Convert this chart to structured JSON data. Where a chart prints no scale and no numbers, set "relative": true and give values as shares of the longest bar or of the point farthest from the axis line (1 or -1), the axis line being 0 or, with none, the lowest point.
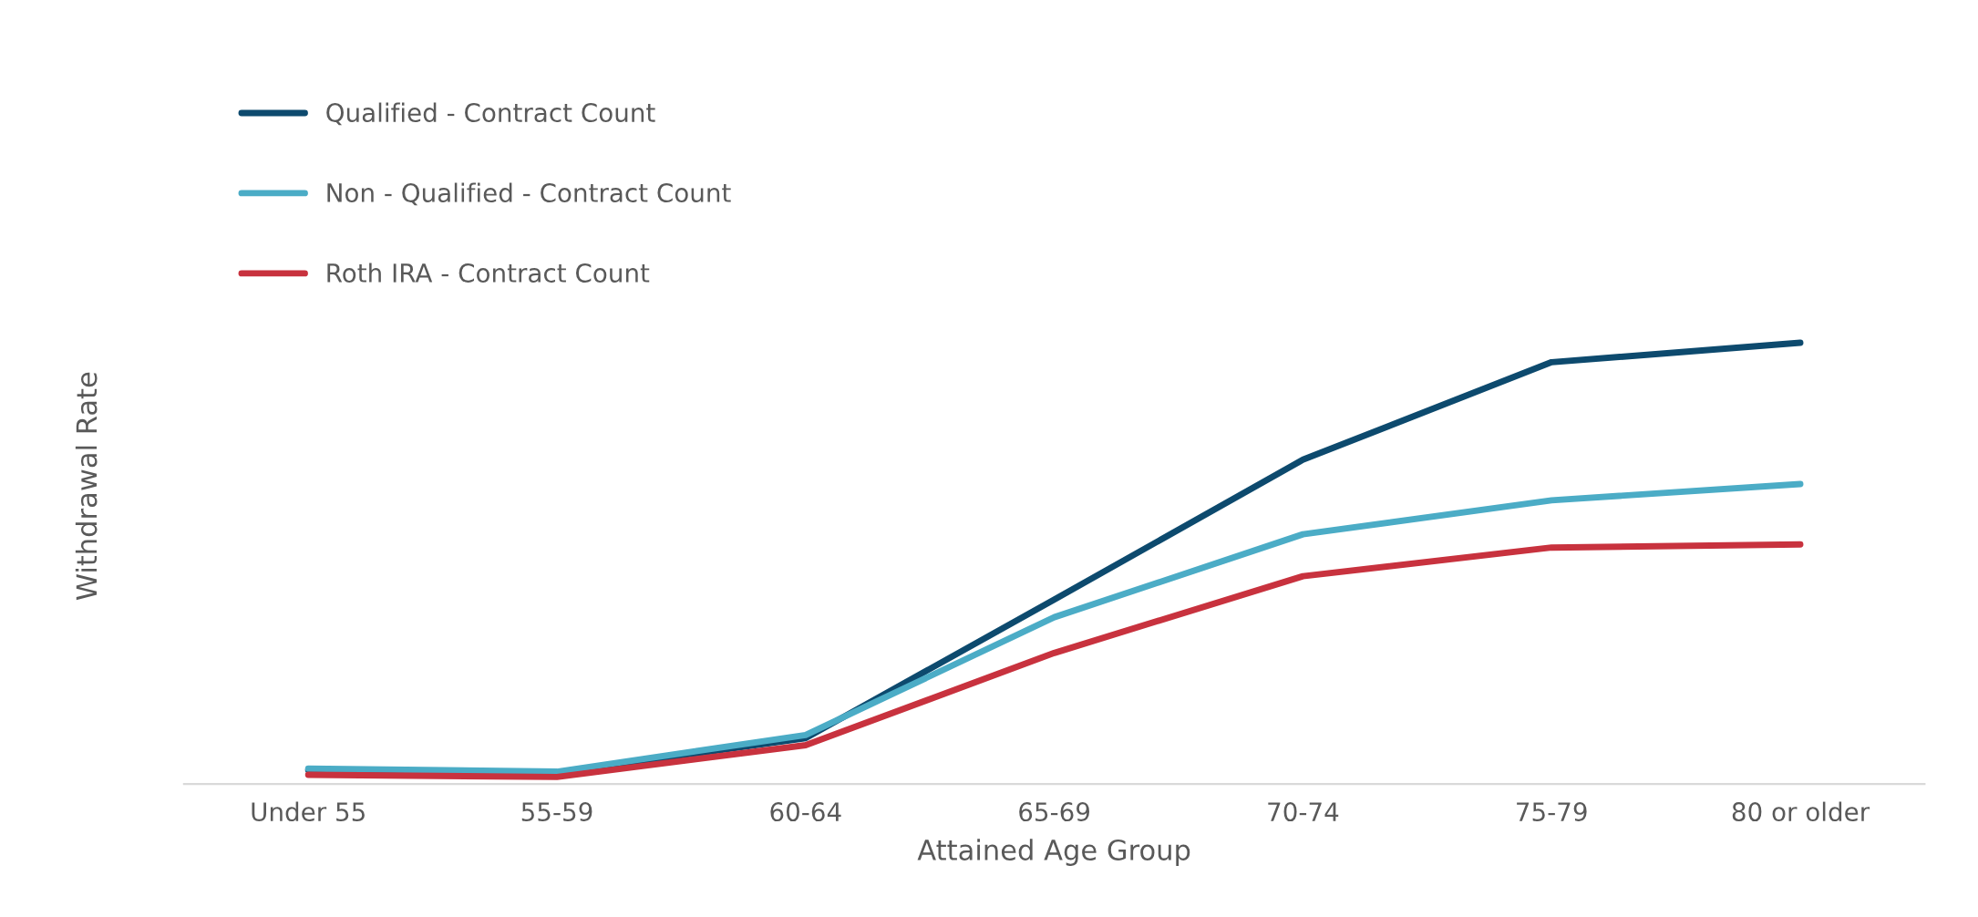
{
  "chart_data": {
    "type": "line",
    "relative": true,
    "xlabel": "Attained Age Group",
    "ylabel": "Withdrawal Rate",
    "categories": [
      "Under 55",
      "55-59",
      "60-64",
      "65-69",
      "70-74",
      "75-79",
      "80 or older"
    ],
    "series": [
      {
        "name": "Qualified - Contract Count",
        "color": "#0d4a6e",
        "values": [
          0.032,
          0.026,
          0.104,
          0.418,
          0.735,
          0.956,
          1
        ]
      },
      {
        "name": "Non - Qualified - Contract Count",
        "color": "#4bacc6",
        "values": [
          0.035,
          0.028,
          0.111,
          0.378,
          0.566,
          0.643,
          0.68
        ]
      },
      {
        "name": "Roth IRA - Contract Count",
        "color": "#c8323e",
        "values": [
          0.021,
          0.016,
          0.088,
          0.297,
          0.471,
          0.536,
          0.543
        ]
      }
    ],
    "legend": "top left",
    "marker": "none",
    "line_style": "solid"
  }
}
